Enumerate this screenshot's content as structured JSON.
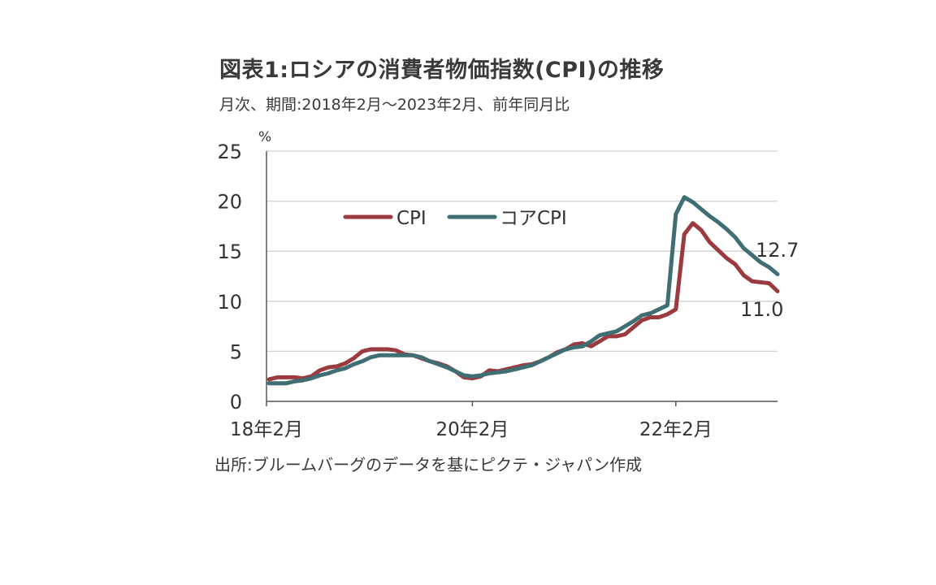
{
  "title": "図表1:ロシアの消費者物価指数(CPI)の推移",
  "subtitle": "月次、期間:2018年2月～2023年2月、前年同月比",
  "source": "出所:ブルームバーグのデータを基にピクテ・ジャパン作成",
  "colors": {
    "cpi": "#9b3a3f",
    "core": "#3f6e73",
    "grid": "#d0d0d0",
    "axis": "#555555"
  },
  "chart_data": {
    "type": "line",
    "ylabel": "%",
    "ylim": [
      0,
      25
    ],
    "yticks": [
      0,
      5,
      10,
      15,
      20,
      25
    ],
    "grid": true,
    "legend": "top-center",
    "x": [
      "2018-02",
      "2018-03",
      "2018-04",
      "2018-05",
      "2018-06",
      "2018-07",
      "2018-08",
      "2018-09",
      "2018-10",
      "2018-11",
      "2018-12",
      "2019-01",
      "2019-02",
      "2019-03",
      "2019-04",
      "2019-05",
      "2019-06",
      "2019-07",
      "2019-08",
      "2019-09",
      "2019-10",
      "2019-11",
      "2019-12",
      "2020-01",
      "2020-02",
      "2020-03",
      "2020-04",
      "2020-05",
      "2020-06",
      "2020-07",
      "2020-08",
      "2020-09",
      "2020-10",
      "2020-11",
      "2020-12",
      "2021-01",
      "2021-02",
      "2021-03",
      "2021-04",
      "2021-05",
      "2021-06",
      "2021-07",
      "2021-08",
      "2021-09",
      "2021-10",
      "2021-11",
      "2021-12",
      "2022-01",
      "2022-02",
      "2022-03",
      "2022-04",
      "2022-05",
      "2022-06",
      "2022-07",
      "2022-08",
      "2022-09",
      "2022-10",
      "2022-11",
      "2022-12",
      "2023-01",
      "2023-02"
    ],
    "xtick_labels": [
      {
        "x": "2018-02",
        "label": "18年2月"
      },
      {
        "x": "2020-02",
        "label": "20年2月"
      },
      {
        "x": "2022-02",
        "label": "22年2月"
      }
    ],
    "series": [
      {
        "name": "CPI",
        "color": "#9b3a3f",
        "values": [
          2.2,
          2.4,
          2.4,
          2.4,
          2.3,
          2.5,
          3.1,
          3.4,
          3.5,
          3.8,
          4.3,
          5.0,
          5.2,
          5.2,
          5.2,
          5.1,
          4.7,
          4.6,
          4.3,
          4.0,
          3.8,
          3.5,
          3.0,
          2.4,
          2.3,
          2.5,
          3.1,
          3.0,
          3.2,
          3.4,
          3.6,
          3.7,
          4.0,
          4.4,
          4.9,
          5.2,
          5.7,
          5.8,
          5.5,
          6.0,
          6.5,
          6.5,
          6.7,
          7.4,
          8.1,
          8.4,
          8.4,
          8.7,
          9.2,
          16.7,
          17.8,
          17.1,
          15.9,
          15.1,
          14.3,
          13.7,
          12.6,
          12.0,
          11.9,
          11.8,
          11.0
        ],
        "end_label": "11.0"
      },
      {
        "name": "コアCPI",
        "color": "#3f6e73",
        "values": [
          1.8,
          1.8,
          1.8,
          2.0,
          2.1,
          2.3,
          2.6,
          2.8,
          3.1,
          3.3,
          3.7,
          4.0,
          4.4,
          4.6,
          4.6,
          4.6,
          4.6,
          4.6,
          4.4,
          4.0,
          3.7,
          3.4,
          3.0,
          2.6,
          2.5,
          2.6,
          2.8,
          2.9,
          3.0,
          3.2,
          3.4,
          3.6,
          4.0,
          4.4,
          4.8,
          5.2,
          5.4,
          5.5,
          6.0,
          6.6,
          6.8,
          7.0,
          7.5,
          8.0,
          8.6,
          8.8,
          9.2,
          9.6,
          18.7,
          20.4,
          19.9,
          19.2,
          18.5,
          17.9,
          17.2,
          16.4,
          15.3,
          14.6,
          13.9,
          13.4,
          12.7
        ],
        "end_label": "12.7"
      }
    ]
  }
}
